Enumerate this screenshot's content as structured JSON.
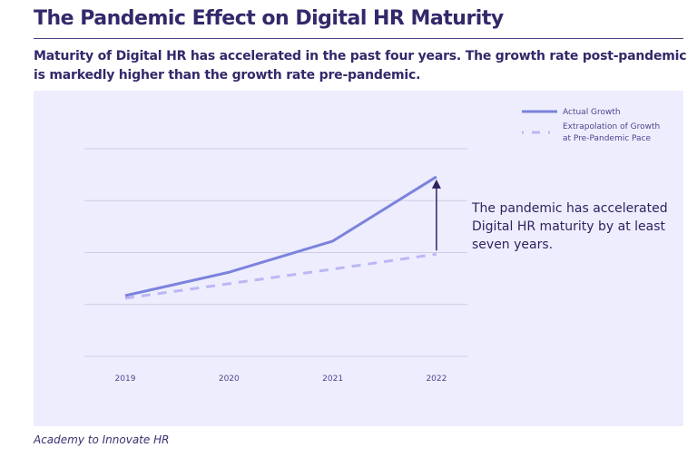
{
  "title": "The Pandemic Effect on Digital HR Maturity",
  "subtitle": "Maturity of Digital HR has accelerated in the past four years. The growth rate post-pandemic is markedly higher than the growth rate pre-pandemic.",
  "source": "Academy to Innovate HR",
  "chart_data": {
    "type": "line",
    "categories": [
      "2019",
      "2020",
      "2021",
      "2022"
    ],
    "ylim": [
      0,
      4
    ],
    "grid": true,
    "y_tick_labels_shown": false,
    "legend_placement": "top-right",
    "series": [
      {
        "name": "Actual Growth",
        "values": [
          1.17,
          1.62,
          2.22,
          3.46
        ],
        "color": "#7b83dd",
        "style": "solid"
      },
      {
        "name": "Extrapolation of Growth at Pre-Pandemic Pace",
        "name_lines": [
          "Extrapolation of Growth",
          "at Pre-Pandemic Pace"
        ],
        "values": [
          1.12,
          1.4,
          1.68,
          1.97
        ],
        "color": "#b9b8f5",
        "style": "dashed"
      }
    ],
    "annotation": {
      "lines": [
        "The pandemic has accelerated",
        "Digital HR maturity by at least",
        "seven years."
      ],
      "arrow_category": "2022",
      "arrow_color": "#2e2360"
    }
  }
}
